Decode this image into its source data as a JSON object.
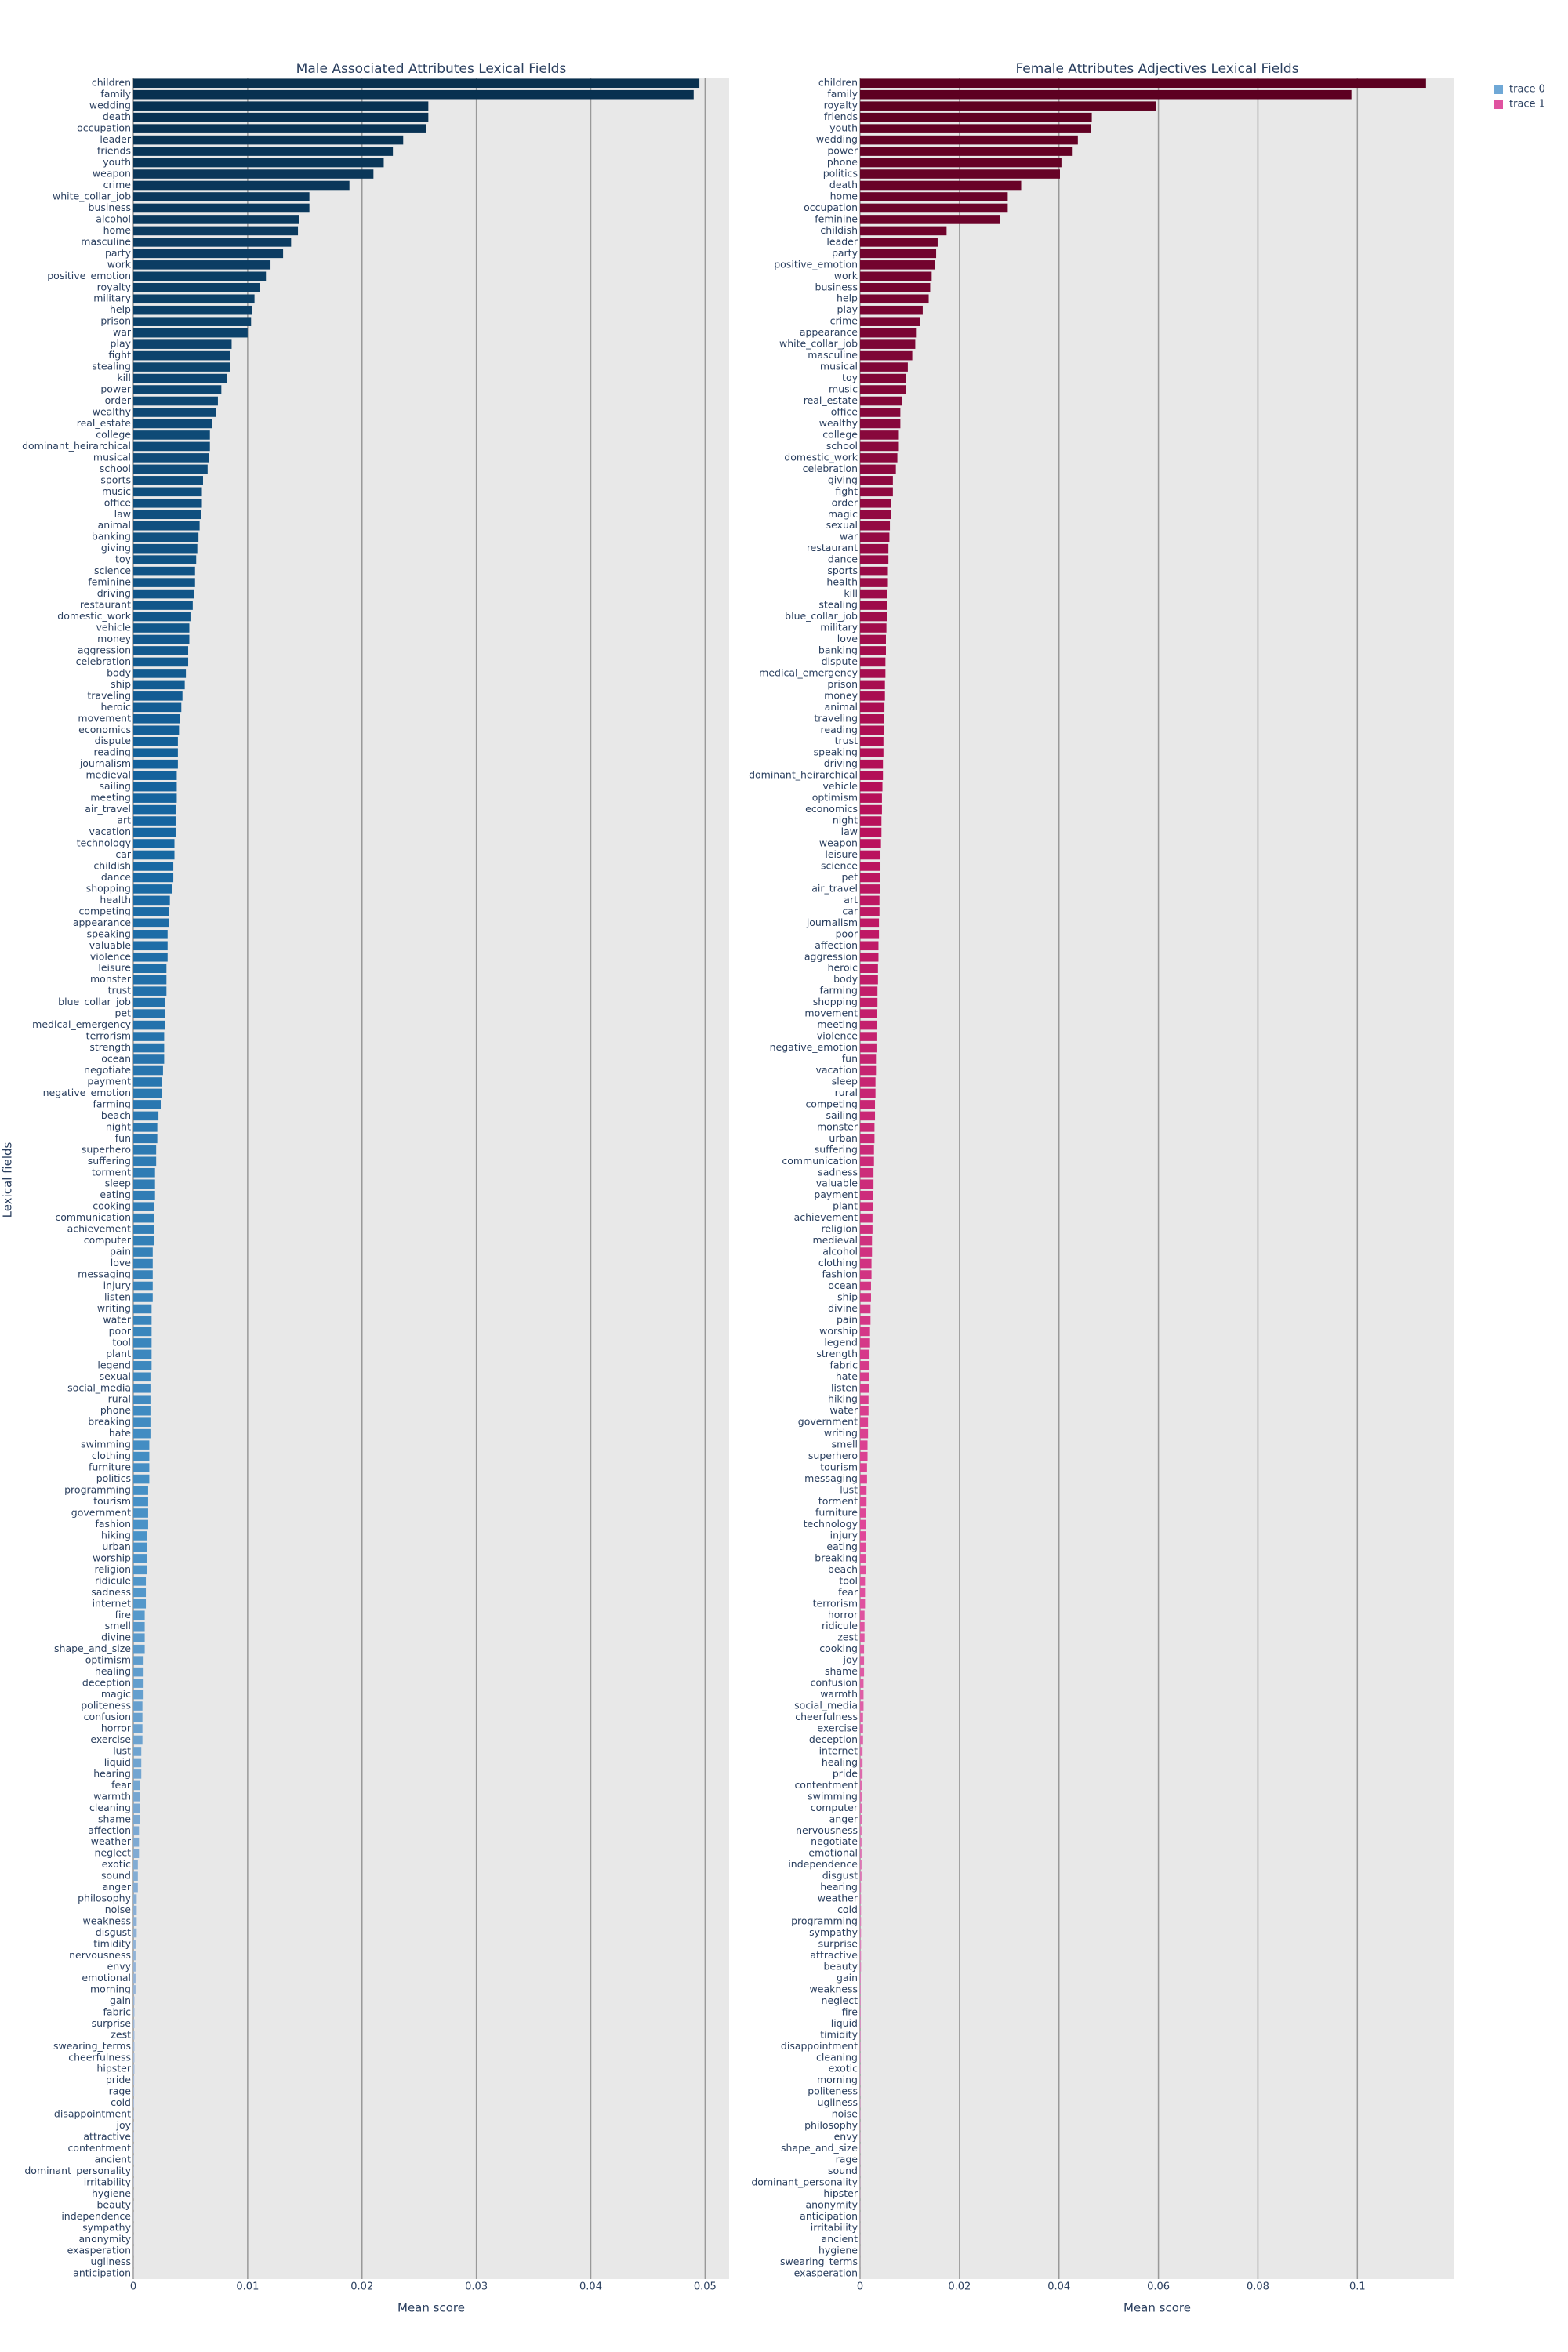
{
  "chart_data": [
    {
      "type": "bar",
      "orientation": "h",
      "title": "Male Associated Attributes Lexical Fields",
      "x_label": "Mean score",
      "y_label": "Lexical fields",
      "legend_name": "trace 0",
      "legend_color": "#6fa8d6",
      "colorscale": [
        "#08304f",
        "#1565a0",
        "#4a93c8",
        "#c8cbe3"
      ],
      "xlim": [
        0,
        0.0521
      ],
      "xticks": [
        0,
        0.01,
        0.02,
        0.03,
        0.04,
        0.05
      ],
      "grid": true,
      "categories": [
        "children",
        "family",
        "wedding",
        "death",
        "occupation",
        "leader",
        "friends",
        "youth",
        "weapon",
        "crime",
        "white_collar_job",
        "business",
        "alcohol",
        "home",
        "masculine",
        "party",
        "work",
        "positive_emotion",
        "royalty",
        "military",
        "help",
        "prison",
        "war",
        "play",
        "fight",
        "stealing",
        "kill",
        "power",
        "order",
        "wealthy",
        "real_estate",
        "college",
        "dominant_heirarchical",
        "musical",
        "school",
        "sports",
        "music",
        "office",
        "law",
        "animal",
        "banking",
        "giving",
        "toy",
        "science",
        "feminine",
        "driving",
        "restaurant",
        "domestic_work",
        "vehicle",
        "money",
        "aggression",
        "celebration",
        "body",
        "ship",
        "traveling",
        "heroic",
        "movement",
        "economics",
        "dispute",
        "reading",
        "journalism",
        "medieval",
        "sailing",
        "meeting",
        "air_travel",
        "art",
        "vacation",
        "technology",
        "car",
        "childish",
        "dance",
        "shopping",
        "health",
        "competing",
        "appearance",
        "speaking",
        "valuable",
        "violence",
        "leisure",
        "monster",
        "trust",
        "blue_collar_job",
        "pet",
        "medical_emergency",
        "terrorism",
        "strength",
        "ocean",
        "negotiate",
        "payment",
        "negative_emotion",
        "farming",
        "beach",
        "night",
        "fun",
        "superhero",
        "suffering",
        "torment",
        "sleep",
        "eating",
        "cooking",
        "communication",
        "achievement",
        "computer",
        "pain",
        "love",
        "messaging",
        "injury",
        "listen",
        "writing",
        "water",
        "poor",
        "tool",
        "plant",
        "legend",
        "sexual",
        "social_media",
        "rural",
        "phone",
        "breaking",
        "hate",
        "swimming",
        "clothing",
        "furniture",
        "politics",
        "programming",
        "tourism",
        "government",
        "fashion",
        "hiking",
        "urban",
        "worship",
        "religion",
        "ridicule",
        "sadness",
        "internet",
        "fire",
        "smell",
        "divine",
        "shape_and_size",
        "optimism",
        "healing",
        "deception",
        "magic",
        "politeness",
        "confusion",
        "horror",
        "exercise",
        "lust",
        "liquid",
        "hearing",
        "fear",
        "warmth",
        "cleaning",
        "shame",
        "affection",
        "weather",
        "neglect",
        "exotic",
        "sound",
        "anger",
        "philosophy",
        "noise",
        "weakness",
        "disgust",
        "timidity",
        "nervousness",
        "envy",
        "emotional",
        "morning",
        "gain",
        "fabric",
        "surprise",
        "zest",
        "swearing_terms",
        "cheerfulness",
        "hipster",
        "pride",
        "rage",
        "cold",
        "disappointment",
        "joy",
        "attractive",
        "contentment",
        "ancient",
        "dominant_personality",
        "irritability",
        "hygiene",
        "beauty",
        "independence",
        "sympathy",
        "anonymity",
        "exasperation",
        "ugliness",
        "anticipation"
      ],
      "values": [
        0.0495,
        0.049,
        0.0258,
        0.0258,
        0.0256,
        0.0236,
        0.0227,
        0.0219,
        0.021,
        0.0189,
        0.0154,
        0.0154,
        0.0145,
        0.0144,
        0.0138,
        0.0131,
        0.012,
        0.0116,
        0.0111,
        0.0106,
        0.0104,
        0.0103,
        0.01,
        0.0086,
        0.0085,
        0.0085,
        0.0082,
        0.0077,
        0.0074,
        0.0072,
        0.0069,
        0.0067,
        0.0067,
        0.0066,
        0.0065,
        0.0061,
        0.006,
        0.006,
        0.0059,
        0.0058,
        0.0057,
        0.0056,
        0.0055,
        0.0054,
        0.0054,
        0.0053,
        0.0052,
        0.005,
        0.0049,
        0.0049,
        0.0048,
        0.0048,
        0.0046,
        0.0045,
        0.0043,
        0.0042,
        0.0041,
        0.004,
        0.0039,
        0.0039,
        0.0039,
        0.0038,
        0.0038,
        0.0038,
        0.0037,
        0.0037,
        0.0037,
        0.0036,
        0.0036,
        0.0035,
        0.0035,
        0.0034,
        0.0032,
        0.0031,
        0.0031,
        0.003,
        0.003,
        0.003,
        0.0029,
        0.0029,
        0.0029,
        0.0028,
        0.0028,
        0.0028,
        0.0027,
        0.0027,
        0.0027,
        0.0026,
        0.0025,
        0.0025,
        0.0024,
        0.0022,
        0.0021,
        0.0021,
        0.002,
        0.002,
        0.0019,
        0.0019,
        0.0019,
        0.0018,
        0.0018,
        0.0018,
        0.0018,
        0.0017,
        0.0017,
        0.0017,
        0.0017,
        0.0017,
        0.0016,
        0.0016,
        0.0016,
        0.0016,
        0.0016,
        0.0016,
        0.0015,
        0.0015,
        0.0015,
        0.0015,
        0.0015,
        0.0015,
        0.0014,
        0.0014,
        0.0014,
        0.0014,
        0.0013,
        0.0013,
        0.0013,
        0.0013,
        0.0012,
        0.0012,
        0.0012,
        0.0012,
        0.0011,
        0.0011,
        0.0011,
        0.001,
        0.001,
        0.001,
        0.001,
        0.0009,
        0.0009,
        0.0009,
        0.0009,
        0.0008,
        0.0008,
        0.0008,
        0.0008,
        0.0007,
        0.0007,
        0.0007,
        0.0006,
        0.0006,
        0.0006,
        0.0006,
        0.0005,
        0.0005,
        0.0005,
        0.0004,
        0.0004,
        0.0004,
        0.0003,
        0.0003,
        0.0003,
        0.0003,
        0.0002,
        0.0002,
        0.0002,
        0.0002,
        0.0002,
        0.0001,
        0.0001,
        0.0001,
        0.0001,
        0.0001,
        0.0001,
        0.0001,
        8e-05,
        8e-05,
        7e-05,
        7e-05,
        6e-05,
        6e-05,
        5e-05,
        5e-05,
        4e-05,
        4e-05,
        3e-05,
        3e-05,
        3e-05,
        2e-05,
        2e-05,
        2e-05,
        1e-05,
        1e-05
      ]
    },
    {
      "type": "bar",
      "orientation": "h",
      "title": "Female Attributes Adjectives Lexical Fields",
      "x_label": "Mean score",
      "legend_name": "trace 1",
      "legend_color": "#e052a0",
      "colorscale": [
        "#5c0020",
        "#b8105a",
        "#e0489a",
        "#d6b0d4"
      ],
      "xlim": [
        0,
        0.1195
      ],
      "xticks": [
        0,
        0.02,
        0.04,
        0.06,
        0.08,
        0.1
      ],
      "grid": true,
      "categories": [
        "children",
        "family",
        "royalty",
        "friends",
        "youth",
        "wedding",
        "power",
        "phone",
        "politics",
        "death",
        "home",
        "occupation",
        "feminine",
        "childish",
        "leader",
        "party",
        "positive_emotion",
        "work",
        "business",
        "help",
        "play",
        "crime",
        "appearance",
        "white_collar_job",
        "masculine",
        "musical",
        "toy",
        "music",
        "real_estate",
        "office",
        "wealthy",
        "college",
        "school",
        "domestic_work",
        "celebration",
        "giving",
        "fight",
        "order",
        "magic",
        "sexual",
        "war",
        "restaurant",
        "dance",
        "sports",
        "health",
        "kill",
        "stealing",
        "blue_collar_job",
        "military",
        "love",
        "banking",
        "dispute",
        "medical_emergency",
        "prison",
        "money",
        "animal",
        "traveling",
        "reading",
        "trust",
        "speaking",
        "driving",
        "dominant_heirarchical",
        "vehicle",
        "optimism",
        "economics",
        "night",
        "law",
        "weapon",
        "leisure",
        "science",
        "pet",
        "air_travel",
        "art",
        "car",
        "journalism",
        "poor",
        "affection",
        "aggression",
        "heroic",
        "body",
        "farming",
        "shopping",
        "movement",
        "meeting",
        "violence",
        "negative_emotion",
        "fun",
        "vacation",
        "sleep",
        "rural",
        "competing",
        "sailing",
        "monster",
        "urban",
        "suffering",
        "communication",
        "sadness",
        "valuable",
        "payment",
        "plant",
        "achievement",
        "religion",
        "medieval",
        "alcohol",
        "clothing",
        "fashion",
        "ocean",
        "ship",
        "divine",
        "pain",
        "worship",
        "legend",
        "strength",
        "fabric",
        "hate",
        "listen",
        "hiking",
        "water",
        "government",
        "writing",
        "smell",
        "superhero",
        "tourism",
        "messaging",
        "lust",
        "torment",
        "furniture",
        "technology",
        "injury",
        "eating",
        "breaking",
        "beach",
        "tool",
        "fear",
        "terrorism",
        "horror",
        "ridicule",
        "zest",
        "cooking",
        "joy",
        "shame",
        "confusion",
        "warmth",
        "social_media",
        "cheerfulness",
        "exercise",
        "deception",
        "internet",
        "healing",
        "pride",
        "contentment",
        "swimming",
        "computer",
        "anger",
        "nervousness",
        "negotiate",
        "emotional",
        "independence",
        "disgust",
        "hearing",
        "weather",
        "cold",
        "programming",
        "sympathy",
        "surprise",
        "attractive",
        "beauty",
        "gain",
        "weakness",
        "neglect",
        "fire",
        "liquid",
        "timidity",
        "disappointment",
        "cleaning",
        "exotic",
        "morning",
        "politeness",
        "ugliness",
        "noise",
        "philosophy",
        "envy",
        "shape_and_size",
        "rage",
        "sound",
        "dominant_personality",
        "hipster",
        "anonymity",
        "anticipation",
        "irritability",
        "ancient",
        "hygiene",
        "swearing_terms",
        "exasperation"
      ],
      "values": [
        0.1138,
        0.0988,
        0.0595,
        0.0466,
        0.0465,
        0.0438,
        0.0426,
        0.0405,
        0.0402,
        0.0324,
        0.0297,
        0.0297,
        0.0282,
        0.0174,
        0.0156,
        0.0153,
        0.015,
        0.0144,
        0.0141,
        0.0138,
        0.0126,
        0.012,
        0.0114,
        0.0111,
        0.0105,
        0.0096,
        0.0093,
        0.0093,
        0.0084,
        0.0081,
        0.0081,
        0.0078,
        0.0078,
        0.0075,
        0.0072,
        0.0066,
        0.0066,
        0.0063,
        0.0063,
        0.006,
        0.0059,
        0.0057,
        0.0057,
        0.0056,
        0.0056,
        0.0055,
        0.0054,
        0.0054,
        0.0053,
        0.0052,
        0.0052,
        0.0051,
        0.0051,
        0.005,
        0.005,
        0.0049,
        0.0048,
        0.0048,
        0.0047,
        0.0047,
        0.0046,
        0.0046,
        0.0045,
        0.0044,
        0.0044,
        0.0043,
        0.0043,
        0.0042,
        0.0041,
        0.0041,
        0.004,
        0.004,
        0.0039,
        0.0039,
        0.0038,
        0.0038,
        0.0037,
        0.0037,
        0.0036,
        0.0036,
        0.0035,
        0.0035,
        0.0034,
        0.0034,
        0.0033,
        0.0033,
        0.0032,
        0.0032,
        0.0031,
        0.0031,
        0.003,
        0.003,
        0.0029,
        0.0029,
        0.0028,
        0.0028,
        0.0027,
        0.0027,
        0.0026,
        0.0026,
        0.0025,
        0.0025,
        0.0024,
        0.0024,
        0.0023,
        0.0023,
        0.0022,
        0.0022,
        0.0021,
        0.0021,
        0.002,
        0.002,
        0.0019,
        0.0019,
        0.0018,
        0.0018,
        0.0017,
        0.0017,
        0.0016,
        0.0016,
        0.0015,
        0.0015,
        0.0014,
        0.0014,
        0.0013,
        0.0013,
        0.0012,
        0.0012,
        0.0012,
        0.0011,
        0.0011,
        0.0011,
        0.001,
        0.001,
        0.001,
        0.0009,
        0.0009,
        0.0009,
        0.0008,
        0.0008,
        0.0008,
        0.0007,
        0.0007,
        0.0007,
        0.0006,
        0.0006,
        0.0006,
        0.0005,
        0.0005,
        0.0005,
        0.0004,
        0.0004,
        0.0004,
        0.0004,
        0.0003,
        0.0003,
        0.0003,
        0.0003,
        0.0003,
        0.0002,
        0.0002,
        0.0002,
        0.0002,
        0.0002,
        0.0002,
        0.0002,
        0.0002,
        0.00015,
        0.00015,
        0.00015,
        0.00015,
        0.00014,
        0.00013,
        0.00012,
        0.00012,
        0.00011,
        0.0001,
        0.0001,
        0.0001,
        9e-05,
        9e-05,
        8e-05,
        8e-05,
        7e-05,
        7e-05,
        6e-05,
        6e-05,
        5e-05,
        5e-05,
        4e-05,
        4e-05,
        3e-05,
        2e-05,
        1e-05
      ]
    }
  ]
}
